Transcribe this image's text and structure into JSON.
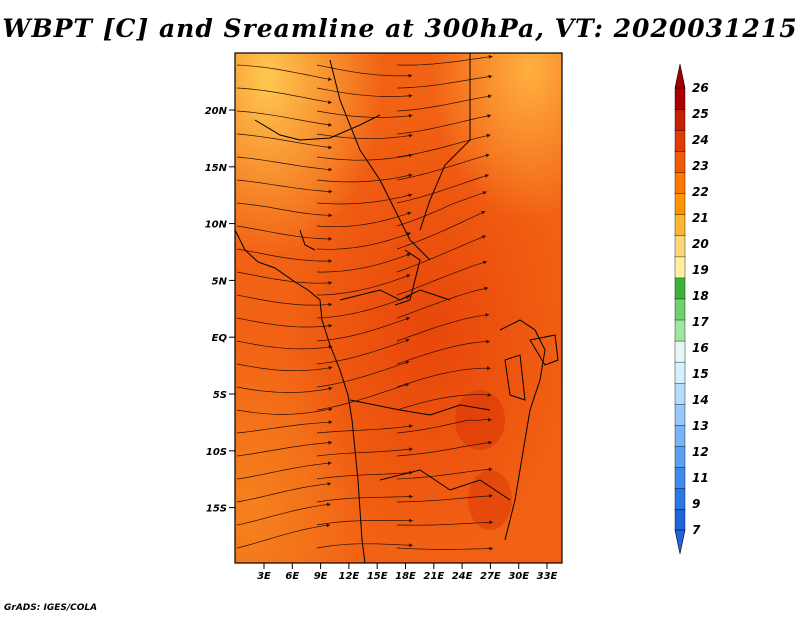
{
  "title": "WBPT [C] and Sreamline at 300hPa, VT: 2020031215",
  "credit": "GrADS: IGES/COLA",
  "map": {
    "lat_labels": [
      "20N",
      "15N",
      "10N",
      "5N",
      "EQ",
      "5S",
      "10S",
      "15S"
    ],
    "lon_labels": [
      "3E",
      "6E",
      "9E",
      "12E",
      "15E",
      "18E",
      "21E",
      "24E",
      "27E",
      "30E",
      "33E"
    ]
  },
  "colorbar": {
    "labels": [
      "7",
      "9",
      "11",
      "12",
      "13",
      "14",
      "15",
      "16",
      "17",
      "18",
      "19",
      "20",
      "21",
      "22",
      "23",
      "24",
      "25",
      "26"
    ],
    "colors": [
      "#1e64dc",
      "#2878e6",
      "#3c8cf0",
      "#5aa0f5",
      "#78b4f8",
      "#96c8fa",
      "#b4dcfc",
      "#d2f0fe",
      "#e6f8f5",
      "#a0e6a0",
      "#6ed26e",
      "#3cb43c",
      "#fff0a0",
      "#ffd778",
      "#ffb432",
      "#ff9600",
      "#ff7800",
      "#f05a00",
      "#e13c00",
      "#c81e00",
      "#aa0000"
    ],
    "arrow_low_color": "#1e64dc",
    "arrow_high_color": "#a50000"
  }
}
